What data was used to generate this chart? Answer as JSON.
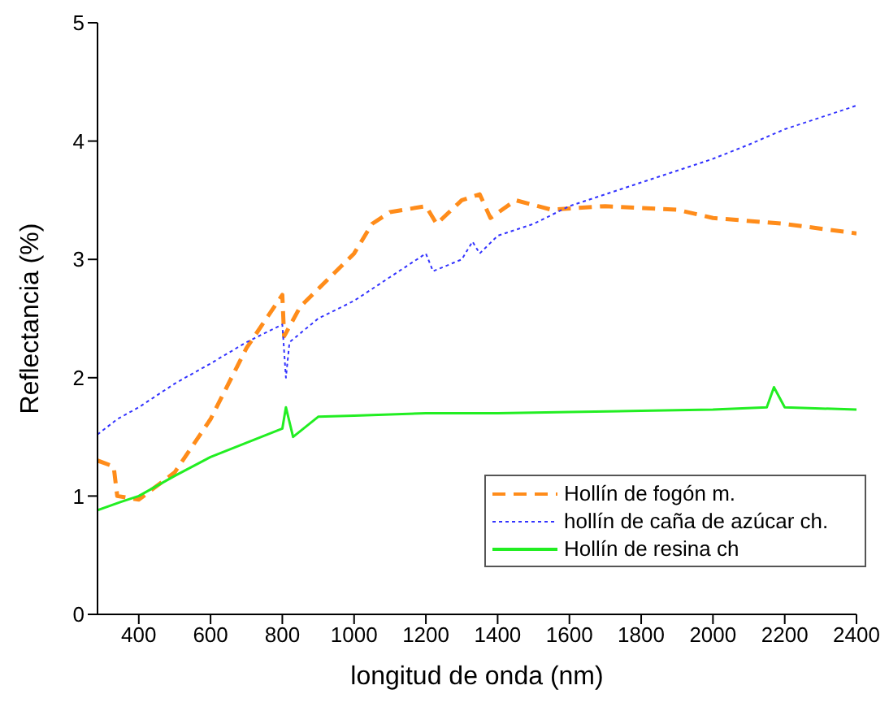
{
  "chart_data": {
    "type": "line",
    "xlabel": "longitud de onda (nm)",
    "ylabel": "Reflectancia (%)",
    "xlim": [
      285,
      2400
    ],
    "xticks": [
      400,
      600,
      800,
      1000,
      1200,
      1400,
      1600,
      1800,
      2000,
      2200,
      2400
    ],
    "ylim": [
      0,
      5
    ],
    "yticks": [
      0,
      1,
      2,
      3,
      4,
      5
    ],
    "legend": "bottom right",
    "marker": "none",
    "series": [
      {
        "name": "Hollín de fogón m.",
        "color": "#ff8c1a",
        "line_style": "dashed",
        "x": [
          285,
          330,
          340,
          400,
          500,
          600,
          700,
          800,
          805,
          850,
          900,
          1000,
          1050,
          1100,
          1200,
          1230,
          1300,
          1350,
          1380,
          1450,
          1550,
          1700,
          1900,
          2000,
          2200,
          2400
        ],
        "values": [
          1.3,
          1.25,
          1.0,
          0.97,
          1.2,
          1.65,
          2.25,
          2.7,
          2.35,
          2.6,
          2.75,
          3.05,
          3.3,
          3.4,
          3.45,
          3.3,
          3.5,
          3.55,
          3.35,
          3.5,
          3.42,
          3.45,
          3.42,
          3.35,
          3.3,
          3.22
        ]
      },
      {
        "name": "hollín de caña de azúcar ch.",
        "color": "#3333ff",
        "line_style": "dotted",
        "x": [
          285,
          340,
          400,
          500,
          600,
          700,
          800,
          810,
          820,
          900,
          1000,
          1100,
          1200,
          1220,
          1300,
          1330,
          1350,
          1400,
          1500,
          1600,
          1700,
          1800,
          1900,
          2000,
          2100,
          2200,
          2300,
          2400
        ],
        "values": [
          1.52,
          1.65,
          1.75,
          1.95,
          2.12,
          2.3,
          2.45,
          2.0,
          2.3,
          2.5,
          2.65,
          2.85,
          3.05,
          2.9,
          3.0,
          3.15,
          3.05,
          3.2,
          3.3,
          3.45,
          3.55,
          3.65,
          3.75,
          3.85,
          3.97,
          4.1,
          4.2,
          4.3
        ]
      },
      {
        "name": "Hollín de resina ch",
        "color": "#22ee22",
        "line_style": "solid",
        "x": [
          285,
          350,
          400,
          500,
          600,
          700,
          800,
          810,
          830,
          900,
          1000,
          1200,
          1400,
          1600,
          1800,
          2000,
          2150,
          2170,
          2200,
          2400
        ],
        "values": [
          0.88,
          0.95,
          1.0,
          1.17,
          1.33,
          1.45,
          1.57,
          1.75,
          1.5,
          1.67,
          1.68,
          1.7,
          1.7,
          1.71,
          1.72,
          1.73,
          1.75,
          1.92,
          1.75,
          1.73
        ]
      }
    ]
  }
}
